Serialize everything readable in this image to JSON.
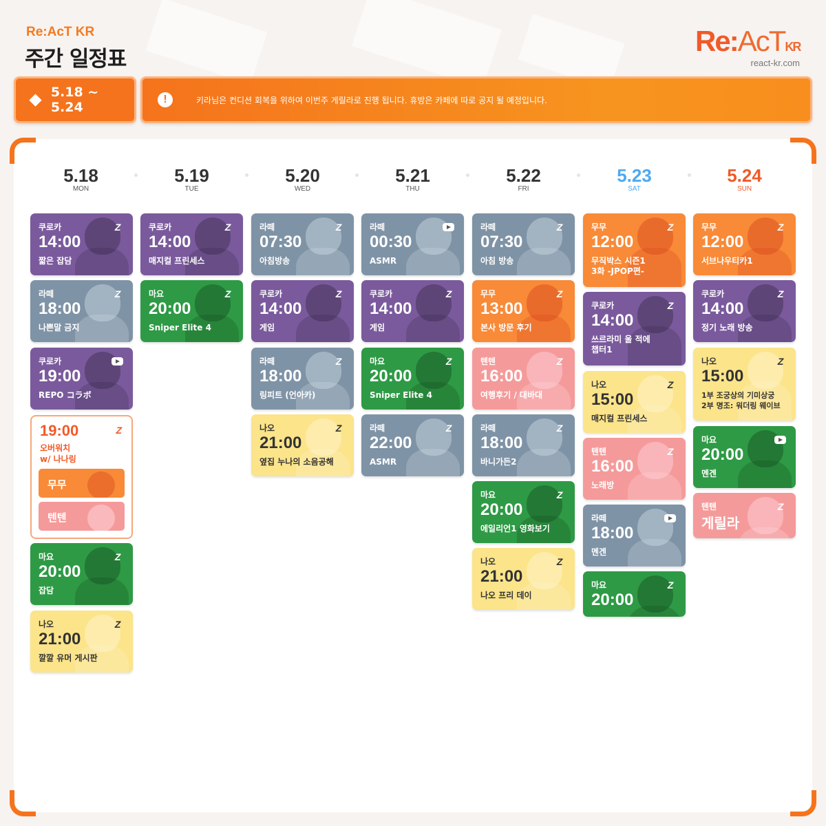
{
  "header": {
    "brand": "Re:AcT KR",
    "title": "주간 일정표",
    "logo_re": "Re:",
    "logo_act": "AcT",
    "logo_kr": "KR",
    "url": "react-kr.com"
  },
  "banner": {
    "date_range": "5.18 ~ 5.24",
    "notice": "키라님은 컨디션 회복을 위하여 이번주 게릴라로 진행 됩니다. 휴방은 카페에 따로 공지 될 예정입니다."
  },
  "colors": {
    "accent": "#f5731c",
    "saturday": "#4ea9f0",
    "sunday": "#f05a28"
  },
  "days": [
    {
      "date": "5.18",
      "weekday": "MON"
    },
    {
      "date": "5.19",
      "weekday": "TUE"
    },
    {
      "date": "5.20",
      "weekday": "WED"
    },
    {
      "date": "5.21",
      "weekday": "THU"
    },
    {
      "date": "5.22",
      "weekday": "FRI"
    },
    {
      "date": "5.23",
      "weekday": "SAT"
    },
    {
      "date": "5.24",
      "weekday": "SUN"
    }
  ],
  "schedule": {
    "mon": [
      {
        "name": "쿠로카",
        "time": "14:00",
        "title": "짧은 잡담",
        "platform": "chzzk-icon"
      },
      {
        "name": "라떼",
        "time": "18:00",
        "title": "나쁜말 금지",
        "platform": "chzzk-icon"
      },
      {
        "name": "쿠로카",
        "time": "19:00",
        "title": "REPO コラボ",
        "platform": "youtube-icon"
      },
      {
        "name": "마요",
        "time": "20:00",
        "title": "잡담",
        "platform": "chzzk-icon"
      },
      {
        "name": "나오",
        "time": "21:00",
        "title": "깔깔 유머 게시판",
        "platform": "chzzk-icon"
      }
    ],
    "mon_collab": {
      "time": "19:00",
      "title_line1": "오버워치",
      "title_line2": "w/ 나나링",
      "members": [
        "무무",
        "텐텐"
      ],
      "platform": "chzzk-icon"
    },
    "tue": [
      {
        "name": "쿠로카",
        "time": "14:00",
        "title": "매지컬 프린세스",
        "platform": "chzzk-icon"
      },
      {
        "name": "마요",
        "time": "20:00",
        "title": "Sniper Elite 4",
        "platform": "chzzk-icon"
      }
    ],
    "wed": [
      {
        "name": "라떼",
        "time": "07:30",
        "title": "아침방송",
        "platform": "chzzk-icon"
      },
      {
        "name": "쿠로카",
        "time": "14:00",
        "title": "게임",
        "platform": "chzzk-icon"
      },
      {
        "name": "라떼",
        "time": "18:00",
        "title": "링피트 (언아카)",
        "platform": "chzzk-icon"
      },
      {
        "name": "나오",
        "time": "21:00",
        "title": "옆집 누나의 소음공해",
        "platform": "chzzk-icon"
      }
    ],
    "thu": [
      {
        "name": "라떼",
        "time": "00:30",
        "title": "ASMR",
        "platform": "youtube-icon"
      },
      {
        "name": "쿠로카",
        "time": "14:00",
        "title": "게임",
        "platform": "chzzk-icon"
      },
      {
        "name": "마요",
        "time": "20:00",
        "title": "Sniper Elite 4",
        "platform": "chzzk-icon"
      },
      {
        "name": "라떼",
        "time": "22:00",
        "title": "ASMR",
        "platform": "chzzk-icon"
      }
    ],
    "fri": [
      {
        "name": "라떼",
        "time": "07:30",
        "title": "아침 방송",
        "platform": "chzzk-icon"
      },
      {
        "name": "무무",
        "time": "13:00",
        "title": "본사 방문 후기",
        "platform": "chzzk-icon"
      },
      {
        "name": "텐텐",
        "time": "16:00",
        "title": "여행후기 / 대바대",
        "platform": "chzzk-icon"
      },
      {
        "name": "라떼",
        "time": "18:00",
        "title": "바니가든2",
        "platform": "chzzk-icon"
      },
      {
        "name": "마요",
        "time": "20:00",
        "title": "에일리언1 영화보기",
        "platform": "chzzk-icon"
      },
      {
        "name": "나오",
        "time": "21:00",
        "title": "나오 프리 데이",
        "platform": "chzzk-icon"
      }
    ],
    "sat": [
      {
        "name": "무무",
        "time": "12:00",
        "title": "무직박스 시즌1",
        "title2": "3화 -JPOP편-",
        "platform": "chzzk-icon"
      },
      {
        "name": "쿠로카",
        "time": "14:00",
        "title": "쓰르라미 울 적에",
        "title2": "챕터1",
        "platform": "chzzk-icon"
      },
      {
        "name": "나오",
        "time": "15:00",
        "title": "매지컬 프린세스",
        "platform": "chzzk-icon"
      },
      {
        "name": "텐텐",
        "time": "16:00",
        "title": "노래방",
        "platform": "chzzk-icon"
      },
      {
        "name": "라떼",
        "time": "18:00",
        "title": "멘겐",
        "platform": "youtube-icon"
      },
      {
        "name": "마요",
        "time": "20:00",
        "title": "",
        "platform": "chzzk-icon"
      }
    ],
    "sun": [
      {
        "name": "무무",
        "time": "12:00",
        "title": "서브나우티카1",
        "platform": "chzzk-icon"
      },
      {
        "name": "쿠로카",
        "time": "14:00",
        "title": "정기 노래 방송",
        "platform": "chzzk-icon"
      },
      {
        "name": "나오",
        "time": "15:00",
        "title": "1부 조궁상의 기미상궁",
        "title2": "2부 명조: 워더링 웨이브",
        "platform": "chzzk-icon"
      },
      {
        "name": "마요",
        "time": "20:00",
        "title": "멘겐",
        "platform": "youtube-icon"
      },
      {
        "name": "텐텐",
        "big": "게릴라",
        "platform": "chzzk-icon"
      }
    ]
  }
}
